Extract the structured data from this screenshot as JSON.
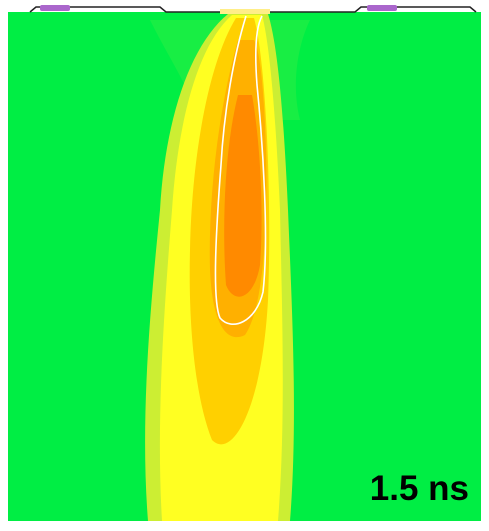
{
  "label": "1.5 ns"
}
